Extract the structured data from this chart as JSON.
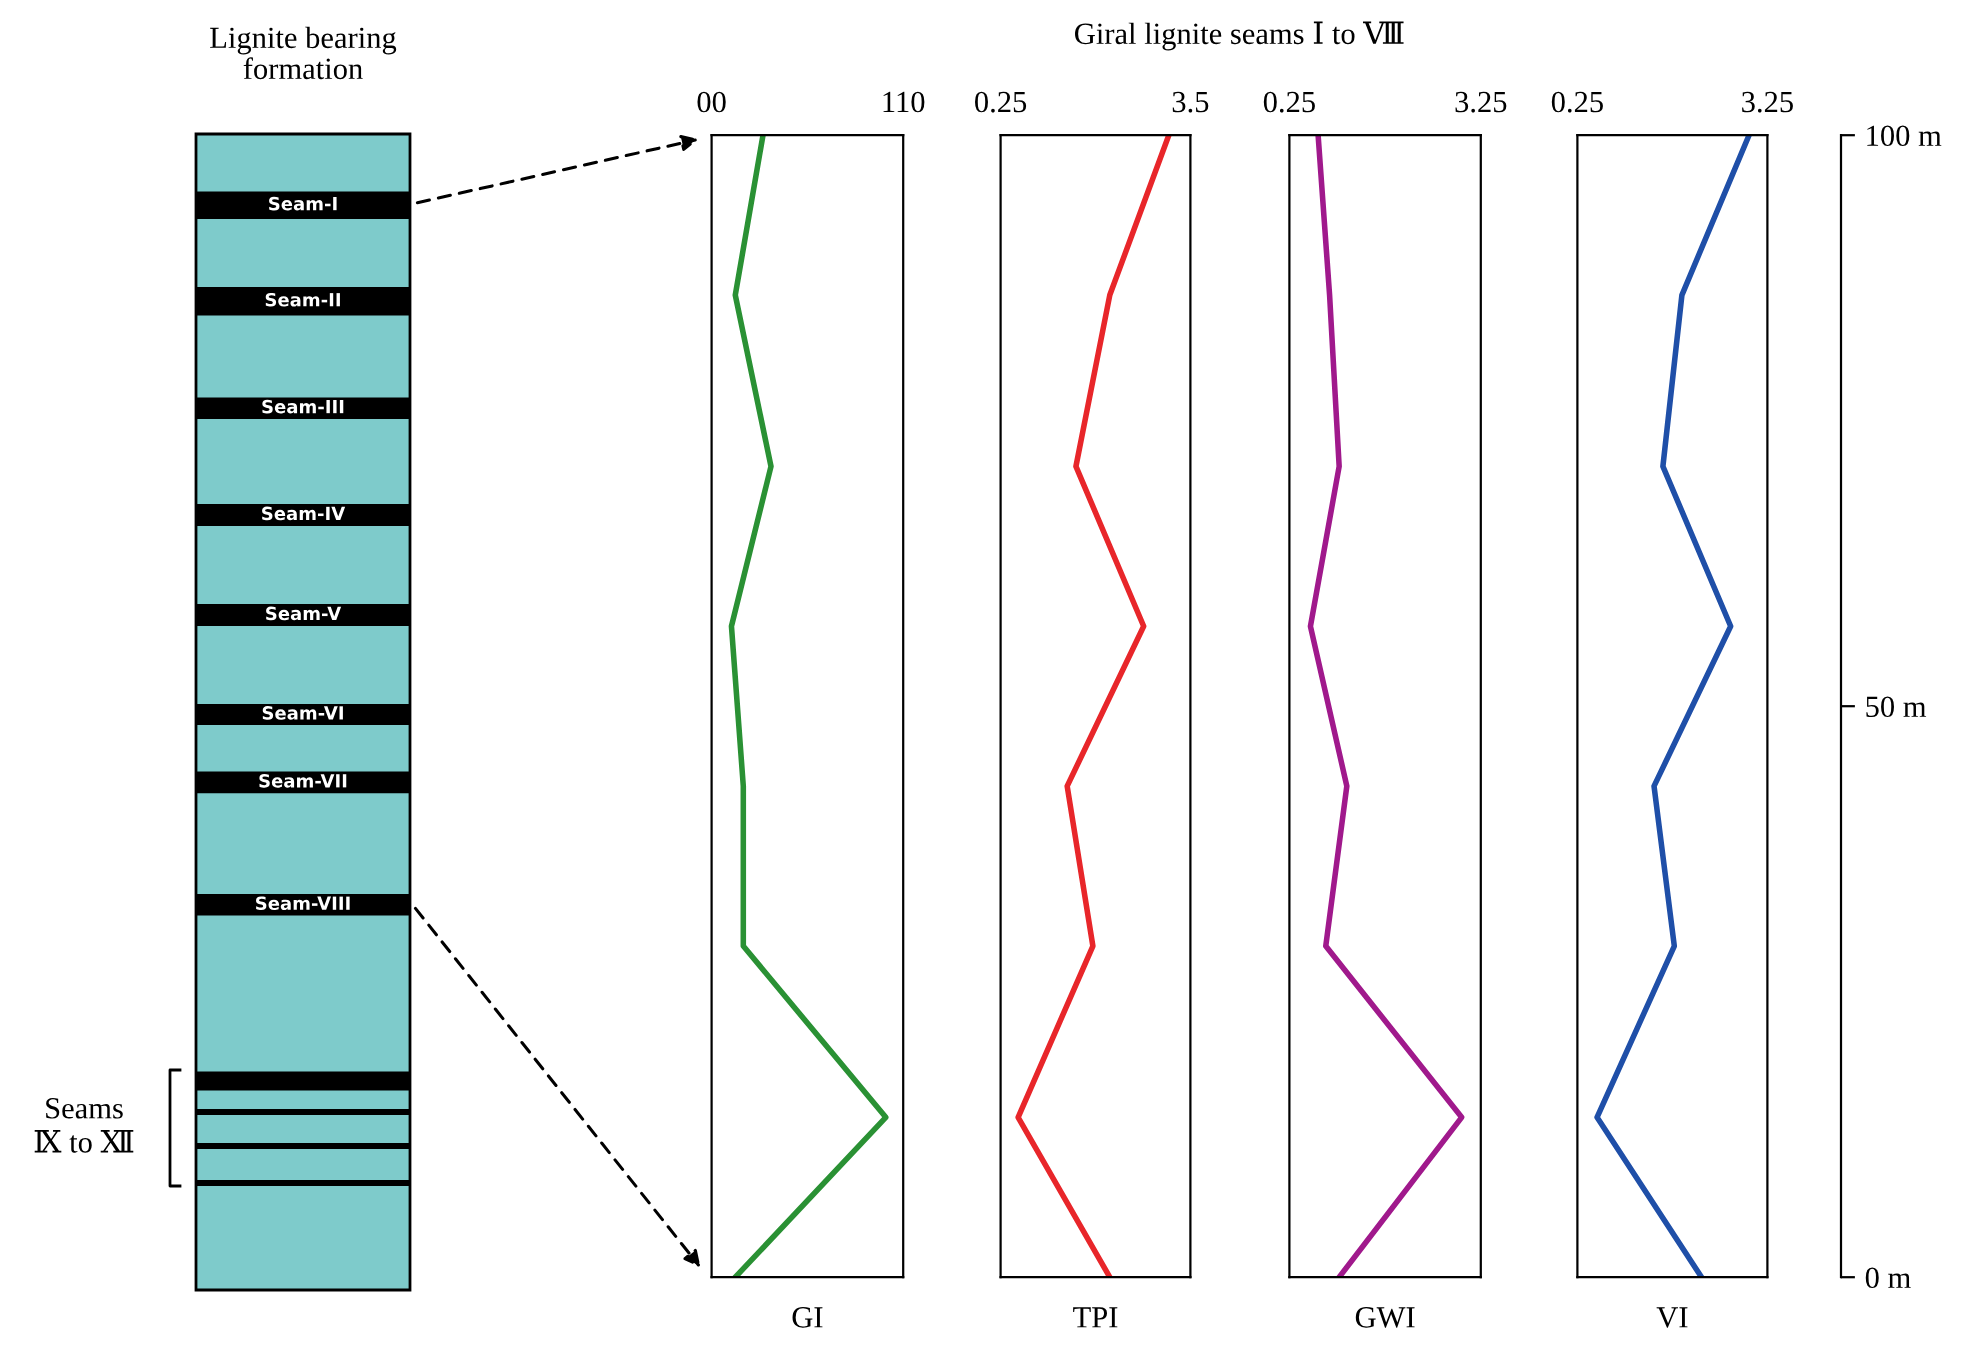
{
  "chart_data": [
    {
      "type": "other",
      "title": "Lignite bearing\nformation",
      "annotations": [
        "Seam-I",
        "Seam-II",
        "Seam-III",
        "Seam-IV",
        "Seam-V",
        "Seam-VI",
        "Seam-VII",
        "Seam-VIII",
        "Seams\nⅨ to Ⅻ",
        "Giral lignite seams Ⅰ to Ⅷ"
      ]
    },
    {
      "type": "line",
      "xlabel": "GI",
      "x": [
        29.5,
        13.6,
        34.1,
        11.4,
        18.2,
        18.2,
        100,
        13.6
      ],
      "values": [
        100,
        86,
        71,
        57,
        43,
        29,
        14,
        0
      ],
      "color": "#2a9134",
      "xlim": [
        0,
        110
      ],
      "xticks": [
        {
          "value": 0,
          "label": "00"
        },
        110
      ],
      "ylim": [
        0,
        100
      ],
      "tick_labels": "x",
      "grid": false,
      "legend": false
    },
    {
      "type": "line",
      "xlabel": "TPI",
      "x": [
        3.13,
        2.12,
        1.54,
        2.7,
        1.39,
        1.83,
        0.55,
        2.12
      ],
      "values": [
        100,
        86,
        71,
        57,
        43,
        29,
        14,
        0
      ],
      "color": "#e8262a",
      "xlim": [
        0.25,
        3.5
      ],
      "xticks": [
        0.25,
        3.5
      ],
      "ylim": [
        0,
        100
      ],
      "tick_labels": "x",
      "grid": false,
      "legend": false
    },
    {
      "type": "line",
      "xlabel": "GWI",
      "x": [
        0.7,
        0.88,
        1.03,
        0.58,
        1.15,
        0.82,
        2.95,
        1.03
      ],
      "values": [
        100,
        86,
        71,
        57,
        43,
        29,
        14,
        0
      ],
      "color": "#a0198c",
      "xlim": [
        0.25,
        3.25
      ],
      "xticks": [
        0.25,
        3.25
      ],
      "ylim": [
        0,
        100
      ],
      "tick_labels": "x",
      "grid": false,
      "legend": false
    },
    {
      "type": "line",
      "xlabel": "VI",
      "x": [
        2.96,
        1.9,
        1.6,
        2.67,
        1.46,
        1.78,
        0.56,
        2.21
      ],
      "values": [
        100,
        86,
        71,
        57,
        43,
        29,
        14,
        0
      ],
      "color": "#1f4fa8",
      "xlim": [
        0.25,
        3.25
      ],
      "xticks": [
        0.25,
        3.25
      ],
      "ylim": [
        0,
        100
      ],
      "yticks": [
        {
          "value": 0,
          "label": "0 m"
        },
        {
          "value": 50,
          "label": "50 m"
        },
        {
          "value": 100,
          "label": "100 m"
        }
      ],
      "grid": false,
      "legend": false
    }
  ]
}
